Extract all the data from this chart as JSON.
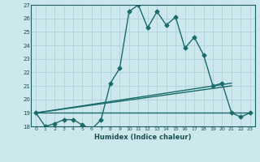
{
  "xlabel": "Humidex (Indice chaleur)",
  "bg_color": "#cce8ec",
  "grid_color": "#aacdd4",
  "line_color": "#1a6b6b",
  "xlim": [
    -0.5,
    23.5
  ],
  "ylim": [
    18,
    27
  ],
  "yticks": [
    18,
    19,
    20,
    21,
    22,
    23,
    24,
    25,
    26,
    27
  ],
  "xticks": [
    0,
    1,
    2,
    3,
    4,
    5,
    6,
    7,
    8,
    9,
    10,
    11,
    12,
    13,
    14,
    15,
    16,
    17,
    18,
    19,
    20,
    21,
    22,
    23
  ],
  "series": [
    {
      "x": [
        0,
        1,
        2,
        3,
        4,
        5,
        6,
        7,
        8,
        9,
        10,
        11,
        12,
        13,
        14,
        15,
        16,
        17,
        18,
        19,
        20,
        21,
        22,
        23
      ],
      "y": [
        19,
        18,
        18.2,
        18.5,
        18.5,
        18.1,
        17.8,
        18.5,
        21.2,
        22.3,
        26.5,
        27,
        25.3,
        26.5,
        25.5,
        26.1,
        23.8,
        24.6,
        23.3,
        21,
        21.2,
        19,
        18.7,
        19
      ],
      "marker": "D",
      "markersize": 2.5,
      "linewidth": 1.0
    },
    {
      "x": [
        0,
        23
      ],
      "y": [
        19.0,
        19.0
      ],
      "marker": null,
      "linewidth": 1.0
    },
    {
      "x": [
        0,
        21
      ],
      "y": [
        19.0,
        21.2
      ],
      "marker": null,
      "linewidth": 1.0
    },
    {
      "x": [
        0,
        21
      ],
      "y": [
        19.0,
        21.0
      ],
      "marker": null,
      "linewidth": 1.0
    }
  ]
}
